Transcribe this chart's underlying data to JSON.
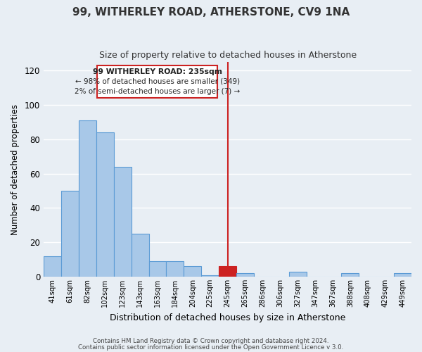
{
  "title": "99, WITHERLEY ROAD, ATHERSTONE, CV9 1NA",
  "subtitle": "Size of property relative to detached houses in Atherstone",
  "xlabel": "Distribution of detached houses by size in Atherstone",
  "ylabel": "Number of detached properties",
  "bar_labels": [
    "41sqm",
    "61sqm",
    "82sqm",
    "102sqm",
    "123sqm",
    "143sqm",
    "163sqm",
    "184sqm",
    "204sqm",
    "225sqm",
    "245sqm",
    "265sqm",
    "286sqm",
    "306sqm",
    "327sqm",
    "347sqm",
    "367sqm",
    "388sqm",
    "408sqm",
    "429sqm",
    "449sqm"
  ],
  "bar_values": [
    12,
    50,
    91,
    84,
    64,
    25,
    9,
    9,
    6,
    1,
    6,
    2,
    0,
    0,
    3,
    0,
    0,
    2,
    0,
    0,
    2
  ],
  "bar_color": "#a8c8e8",
  "bar_edge_color": "#5b9bd5",
  "highlight_bar_index": 10,
  "highlight_color": "#cc2222",
  "vline_x": 10.0,
  "vline_color": "#cc2222",
  "ylim": [
    0,
    125
  ],
  "yticks": [
    0,
    20,
    40,
    60,
    80,
    100,
    120
  ],
  "annotation_title": "99 WITHERLEY ROAD: 235sqm",
  "annotation_line1": "← 98% of detached houses are smaller (349)",
  "annotation_line2": "2% of semi-detached houses are larger (7) →",
  "footer1": "Contains HM Land Registry data © Crown copyright and database right 2024.",
  "footer2": "Contains public sector information licensed under the Open Government Licence v 3.0.",
  "background_color": "#e8eef4",
  "plot_background": "#e8eef4",
  "grid_color": "#ffffff"
}
